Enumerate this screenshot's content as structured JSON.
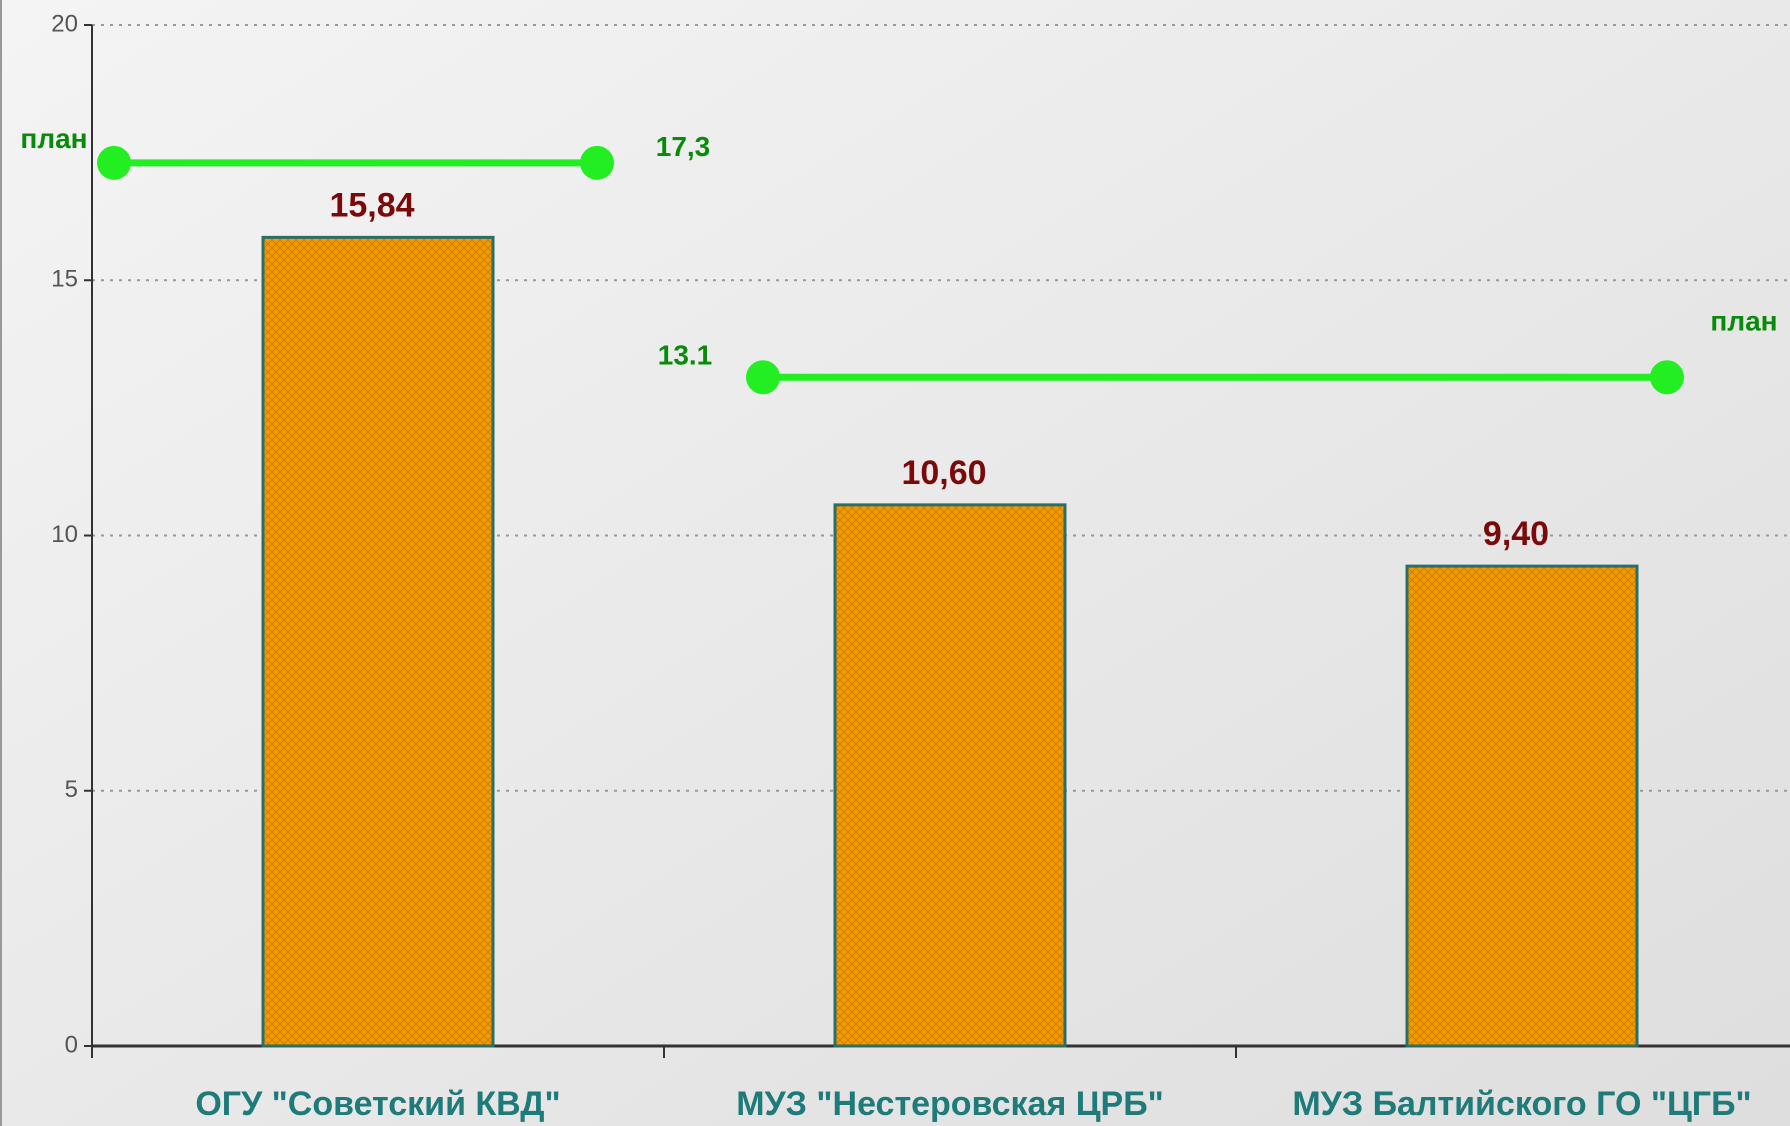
{
  "chart_data": {
    "type": "bar",
    "categories": [
      "ОГУ \"Советский КВД\"",
      "МУЗ \"Нестеровская ЦРБ\"",
      "МУЗ Балтийского ГО \"ЦГБ\""
    ],
    "values": [
      15.84,
      10.6,
      9.4
    ],
    "value_labels": [
      "15,84",
      "10,60",
      "9,40"
    ],
    "color": "#f29a00",
    "ylim": [
      0,
      20
    ],
    "yticks": [
      0,
      5,
      10,
      15,
      20
    ],
    "grid": true,
    "plan_lines": [
      {
        "label": "план",
        "value": 17.3,
        "value_label": "17,3",
        "color": "#22ee22"
      },
      {
        "label": "план",
        "value": 13.1,
        "value_label": "13.1",
        "color": "#22ee22"
      }
    ]
  }
}
